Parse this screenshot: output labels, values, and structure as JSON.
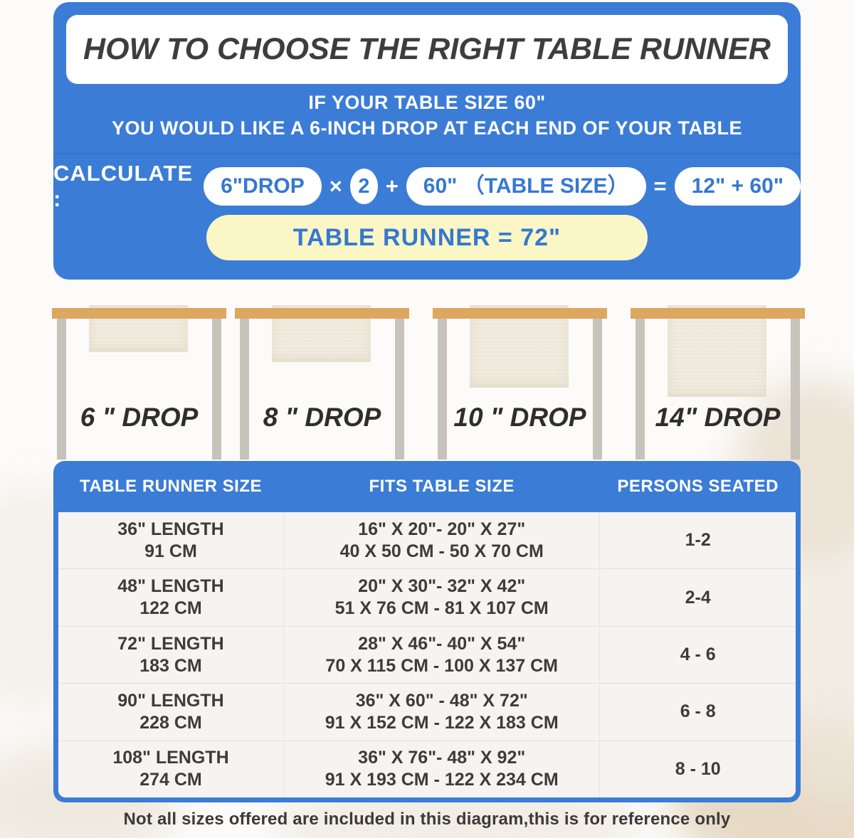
{
  "colors": {
    "accent_blue": "#3B7CD6",
    "pill_text_blue": "#3578CF",
    "result_yellow": "#FAF6C6",
    "tabletop_wood": "#DCA75F",
    "leg_gray": "#C7C2BA",
    "runner_cream": "#F1ECDF",
    "title_text": "#3D3D3D"
  },
  "header": {
    "title": "HOW TO CHOOSE THE RIGHT TABLE RUNNER",
    "subtitle_line1": "IF YOUR TABLE SIZE 60\"",
    "subtitle_line2": "YOU WOULD LIKE A 6-INCH DROP AT EACH END OF YOUR TABLE"
  },
  "formula": {
    "label": "CALCULATE :",
    "drop": "6\"DROP",
    "times": "×",
    "multiplier": "2",
    "plus": "+",
    "table_size": "60\" （TABLE SIZE）",
    "equals": "=",
    "sum": "12\" + 60\"",
    "result": "TABLE RUNNER = 72\""
  },
  "drops": [
    {
      "label": "6 \" DROP"
    },
    {
      "label": "8 \" DROP"
    },
    {
      "label": "10 \" DROP"
    },
    {
      "label": "14\" DROP"
    }
  ],
  "size_table": {
    "headers": [
      "TABLE RUNNER SIZE",
      "FITS TABLE SIZE",
      "PERSONS SEATED"
    ],
    "rows": [
      {
        "runner_size": [
          "36\" LENGTH",
          "91 CM"
        ],
        "fits": [
          "16\" X 20\"- 20\" X 27\"",
          "40 X 50 CM - 50 X 70 CM"
        ],
        "persons": "1-2"
      },
      {
        "runner_size": [
          "48\" LENGTH",
          "122 CM"
        ],
        "fits": [
          "20\" X 30\"- 32\" X 42\"",
          "51 X 76 CM - 81 X 107 CM"
        ],
        "persons": "2-4"
      },
      {
        "runner_size": [
          "72\" LENGTH",
          "183 CM"
        ],
        "fits": [
          "28\" X 46\"- 40\" X 54\"",
          "70 X 115 CM - 100 X 137 CM"
        ],
        "persons": "4 - 6"
      },
      {
        "runner_size": [
          "90\" LENGTH",
          "228 CM"
        ],
        "fits": [
          "36\" X 60\" - 48\" X 72\"",
          "91 X 152 CM - 122 X 183 CM"
        ],
        "persons": "6 - 8"
      },
      {
        "runner_size": [
          "108\" LENGTH",
          "274 CM"
        ],
        "fits": [
          "36\" X 76\"- 48\" X 92\"",
          "91 X 193 CM - 122 X 234 CM"
        ],
        "persons": "8 - 10"
      }
    ]
  },
  "footer": {
    "note": "Not all sizes offered are included in this diagram,this is for reference only"
  }
}
